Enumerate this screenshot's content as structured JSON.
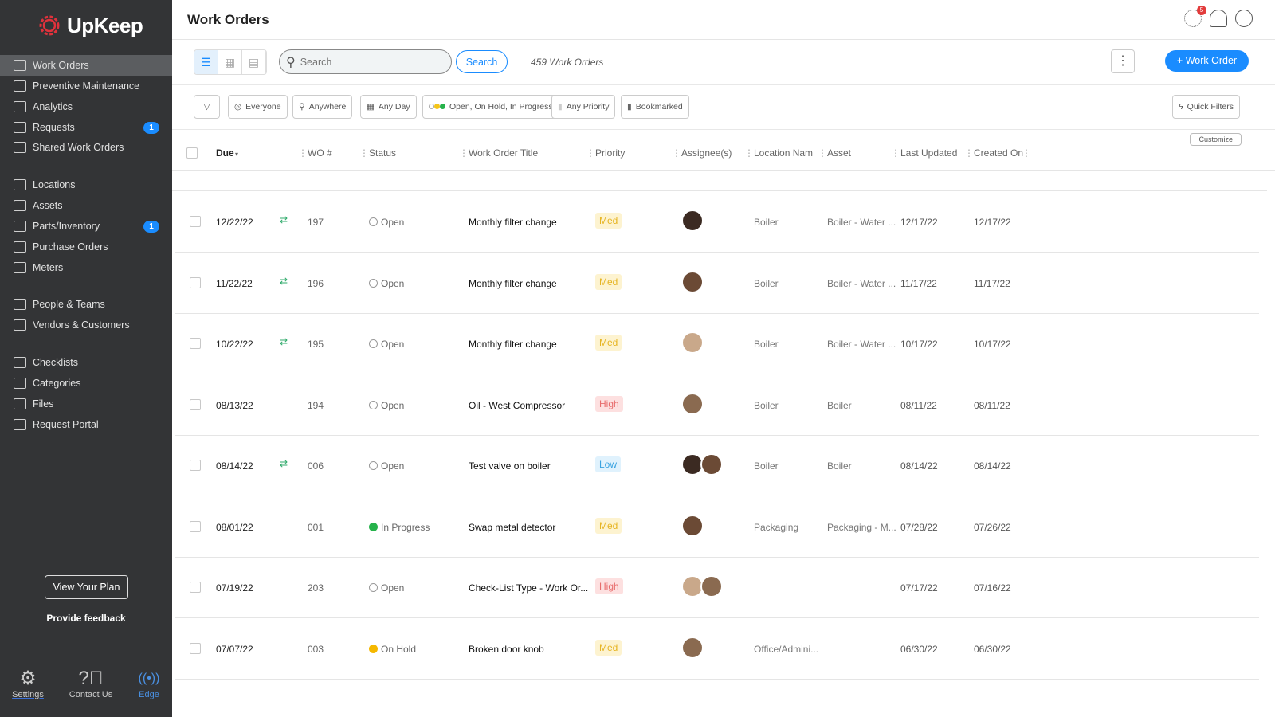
{
  "app": {
    "logo": "UpKeep",
    "brand_color": "#e0323c",
    "accent": "#1a8cff"
  },
  "sidebar": {
    "items": [
      {
        "label": "Work Orders",
        "icon": "clipboard-icon",
        "active": true
      },
      {
        "label": "Preventive Maintenance",
        "icon": "calendar-doc-icon"
      },
      {
        "label": "Analytics",
        "icon": "chart-icon"
      },
      {
        "label": "Requests",
        "icon": "inbox-icon",
        "badge": "1"
      },
      {
        "label": "Shared Work Orders",
        "icon": "share-icon"
      },
      {
        "label": "Locations",
        "icon": "location-pin-icon"
      },
      {
        "label": "Assets",
        "icon": "cube-icon"
      },
      {
        "label": "Parts/Inventory",
        "icon": "wrench-icon",
        "badge": "1"
      },
      {
        "label": "Purchase Orders",
        "icon": "document-icon"
      },
      {
        "label": "Meters",
        "icon": "gauge-icon"
      },
      {
        "label": "People & Teams",
        "icon": "people-icon"
      },
      {
        "label": "Vendors & Customers",
        "icon": "vendors-icon"
      },
      {
        "label": "Checklists",
        "icon": "checklist-icon"
      },
      {
        "label": "Categories",
        "icon": "bookmark-icon"
      },
      {
        "label": "Files",
        "icon": "file-icon"
      },
      {
        "label": "Request Portal",
        "icon": "portal-icon"
      }
    ],
    "view_plan": "View Your Plan",
    "feedback": "Provide feedback",
    "footer": [
      {
        "label": "Settings",
        "icon": "gear-icon"
      },
      {
        "label": "Contact Us",
        "icon": "help-icon"
      },
      {
        "label": "Edge",
        "icon": "broadcast-icon"
      }
    ]
  },
  "header": {
    "title": "Work Orders",
    "notification_badge": "5"
  },
  "toolbar": {
    "search_placeholder": "Search",
    "search_value": "",
    "search_button": "Search",
    "count": "459 Work Orders",
    "add_button": "Work Order"
  },
  "filters": {
    "chips": [
      "Everyone",
      "Anywhere",
      "Any Day",
      "Open, On Hold, In Progress",
      "Any Priority",
      "Bookmarked"
    ],
    "quick_filters": "Quick Filters"
  },
  "table": {
    "customize": "Customize",
    "columns": [
      "Due",
      "WO #",
      "Status",
      "Work Order Title",
      "Priority",
      "Assignee(s)",
      "Location Nam",
      "Asset",
      "Last Updated",
      "Created On"
    ],
    "rows": [
      {
        "due": "12/22/22",
        "repeat": true,
        "wo": "197",
        "status": "Open",
        "title": "Monthly filter change",
        "priority": "Med",
        "assignees": 1,
        "location": "Boiler",
        "asset": "Boiler - Water ...",
        "updated": "12/17/22",
        "created": "12/17/22"
      },
      {
        "due": "11/22/22",
        "repeat": true,
        "wo": "196",
        "status": "Open",
        "title": "Monthly filter change",
        "priority": "Med",
        "assignees": 1,
        "location": "Boiler",
        "asset": "Boiler - Water ...",
        "updated": "11/17/22",
        "created": "11/17/22"
      },
      {
        "due": "10/22/22",
        "repeat": true,
        "wo": "195",
        "status": "Open",
        "title": "Monthly filter change",
        "priority": "Med",
        "assignees": 1,
        "location": "Boiler",
        "asset": "Boiler - Water ...",
        "updated": "10/17/22",
        "created": "10/17/22"
      },
      {
        "due": "08/13/22",
        "repeat": false,
        "wo": "194",
        "status": "Open",
        "title": "Oil - West Compressor",
        "priority": "High",
        "assignees": 1,
        "location": "Boiler",
        "asset": "Boiler",
        "updated": "08/11/22",
        "created": "08/11/22"
      },
      {
        "due": "08/14/22",
        "repeat": true,
        "wo": "006",
        "status": "Open",
        "title": "Test valve on boiler",
        "priority": "Low",
        "assignees": 2,
        "location": "Boiler",
        "asset": "Boiler",
        "updated": "08/14/22",
        "created": "08/14/22"
      },
      {
        "due": "08/01/22",
        "repeat": false,
        "wo": "001",
        "status": "In Progress",
        "title": "Swap metal detector",
        "priority": "Med",
        "assignees": 1,
        "location": "Packaging",
        "asset": "Packaging - M...",
        "updated": "07/28/22",
        "created": "07/26/22"
      },
      {
        "due": "07/19/22",
        "repeat": false,
        "wo": "203",
        "status": "Open",
        "title": "Check-List Type - Work Or...",
        "priority": "High",
        "assignees": 2,
        "location": "",
        "asset": "",
        "updated": "07/17/22",
        "created": "07/16/22"
      },
      {
        "due": "07/07/22",
        "repeat": false,
        "wo": "003",
        "status": "On Hold",
        "title": "Broken door knob",
        "priority": "Med",
        "assignees": 1,
        "location": "Office/Admini...",
        "asset": "",
        "updated": "06/30/22",
        "created": "06/30/22"
      }
    ]
  }
}
